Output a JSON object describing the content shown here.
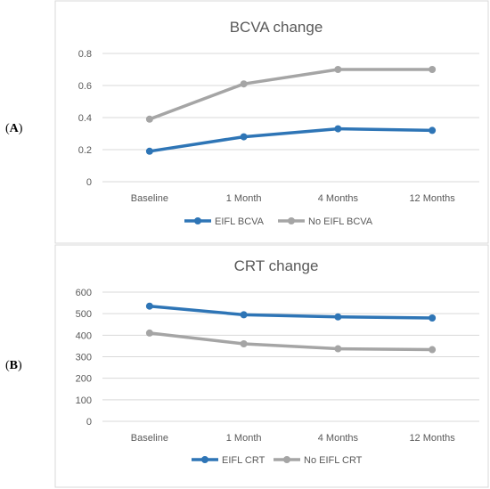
{
  "panels": [
    {
      "label": "A"
    },
    {
      "label": "B"
    }
  ],
  "chart_data": [
    {
      "type": "line",
      "title": "BCVA change",
      "categories": [
        "Baseline",
        "1 Month",
        "4 Months",
        "12 Months"
      ],
      "ylim": [
        0,
        0.8
      ],
      "yticks": [
        "0",
        "0.2",
        "0.4",
        "0.6",
        "0.8"
      ],
      "ytick_values": [
        0,
        0.2,
        0.4,
        0.6,
        0.8
      ],
      "grid": true,
      "legend_position": "bottom",
      "series": [
        {
          "name": "EIFL BCVA",
          "values": [
            0.19,
            0.28,
            0.33,
            0.32
          ],
          "color": "#2e75b6"
        },
        {
          "name": "No EIFL BCVA",
          "values": [
            0.39,
            0.61,
            0.7,
            0.7
          ],
          "color": "#a5a5a5"
        }
      ]
    },
    {
      "type": "line",
      "title": "CRT change",
      "categories": [
        "Baseline",
        "1 Month",
        "4 Months",
        "12 Months"
      ],
      "ylim": [
        0,
        600
      ],
      "yticks": [
        "0",
        "100",
        "200",
        "300",
        "400",
        "500",
        "600"
      ],
      "ytick_values": [
        0,
        100,
        200,
        300,
        400,
        500,
        600
      ],
      "grid": true,
      "legend_position": "bottom",
      "series": [
        {
          "name": "EIFL CRT",
          "values": [
            535,
            495,
            485,
            480
          ],
          "color": "#2e75b6"
        },
        {
          "name": "No EIFL CRT",
          "values": [
            410,
            360,
            337,
            333
          ],
          "color": "#a5a5a5"
        }
      ]
    }
  ]
}
